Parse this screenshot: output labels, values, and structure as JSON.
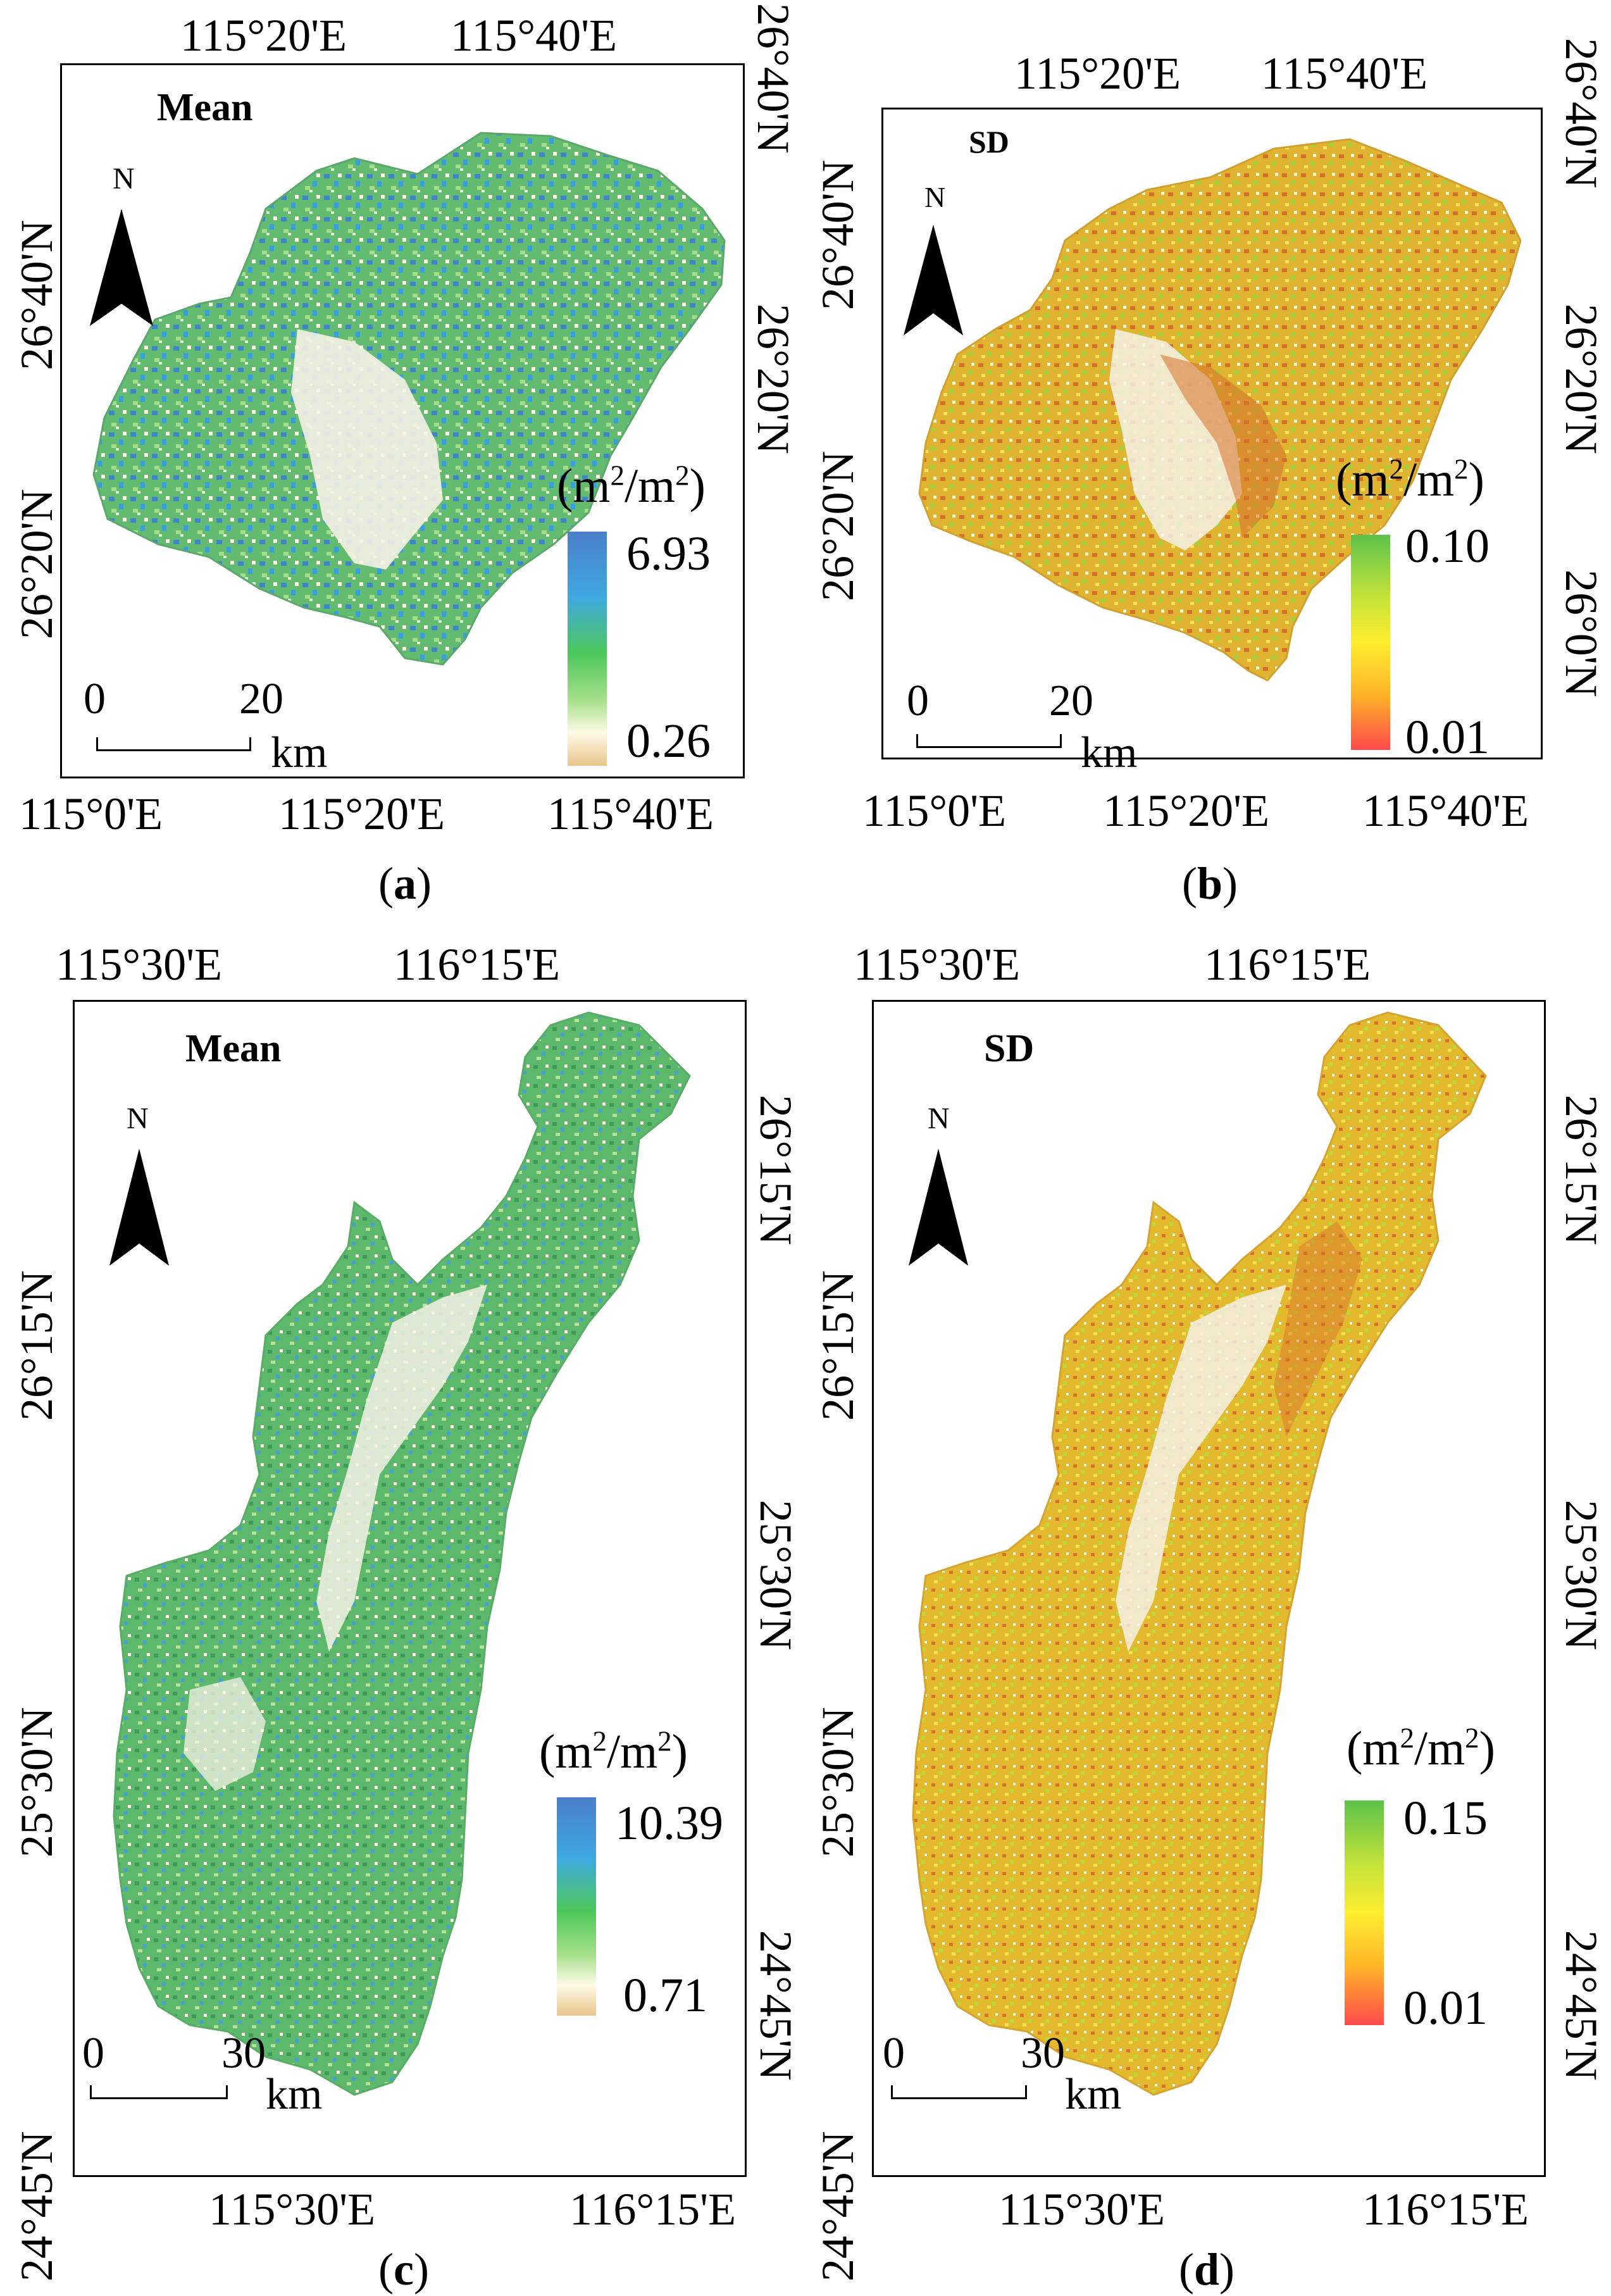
{
  "panels": {
    "a": {
      "caption": "a",
      "title": "Mean",
      "north": "N",
      "top_lon": [
        "115°20'E",
        "115°40'E"
      ],
      "bottom_lon": [
        "115°0'E",
        "115°20'E",
        "115°40'E"
      ],
      "left_lat": [
        "26°40'N",
        "26°20'N"
      ],
      "right_lat": [
        "26°40'N",
        "26°20'N"
      ],
      "unit": "(m²/m²)",
      "legend": {
        "max": "6.93",
        "min": "0.26",
        "colors": [
          "#4a7fc9",
          "#3fa8e0",
          "#4cc85a",
          "#a6e08a",
          "#fffbe8",
          "#e8c48a"
        ]
      },
      "scale": {
        "start": "0",
        "end": "20",
        "unit": "km"
      }
    },
    "b": {
      "caption": "b",
      "title": "SD",
      "north": "N",
      "top_lon": [
        "115°20'E",
        "115°40'E"
      ],
      "bottom_lon": [
        "115°0'E",
        "115°20'E",
        "115°40'E"
      ],
      "left_lat": [
        "26°40'N",
        "26°20'N"
      ],
      "right_lat": [
        "26°40'N",
        "26°20'N",
        "26°0'N"
      ],
      "unit": "(m²/m²)",
      "legend": {
        "max": "0.10",
        "min": "0.01",
        "colors": [
          "#5cc24a",
          "#c2e23a",
          "#ffee30",
          "#ffb428",
          "#ff4a4a"
        ]
      },
      "scale": {
        "start": "0",
        "end": "20",
        "unit": "km"
      }
    },
    "c": {
      "caption": "c",
      "title": "Mean",
      "north": "N",
      "top_lon": [
        "115°30'E",
        "116°15'E"
      ],
      "bottom_lon": [
        "115°30'E",
        "116°15'E"
      ],
      "left_lat": [
        "26°15'N",
        "25°30'N",
        "24°45'N"
      ],
      "right_lat": [
        "26°15'N",
        "25°30'N",
        "24°45'N"
      ],
      "unit": "(m²/m²)",
      "legend": {
        "max": "10.39",
        "min": "0.71",
        "colors": [
          "#4a7fc9",
          "#3fa8e0",
          "#4cc85a",
          "#a6e08a",
          "#fffbe8",
          "#e8c48a"
        ]
      },
      "scale": {
        "start": "0",
        "end": "30",
        "unit": "km"
      }
    },
    "d": {
      "caption": "d",
      "title": "SD",
      "north": "N",
      "top_lon": [
        "115°30'E",
        "116°15'E"
      ],
      "bottom_lon": [
        "115°30'E",
        "116°15'E"
      ],
      "left_lat": [
        "26°15'N",
        "25°30'N",
        "24°45'N"
      ],
      "right_lat": [
        "26°15'N",
        "25°30'N",
        "24°45'N"
      ],
      "unit": "(m²/m²)",
      "legend": {
        "max": "0.15",
        "min": "0.01",
        "colors": [
          "#5cc24a",
          "#c2e23a",
          "#ffee30",
          "#ffb428",
          "#ff4a4a"
        ]
      },
      "scale": {
        "start": "0",
        "end": "30",
        "unit": "km"
      }
    }
  },
  "colors": {
    "mean_fill": "#5cb86a",
    "mean_dense": "#3f86c4",
    "sd_fill": "#e2b530",
    "sd_accent": "#d9752a",
    "sparse": "#f3efe3"
  }
}
